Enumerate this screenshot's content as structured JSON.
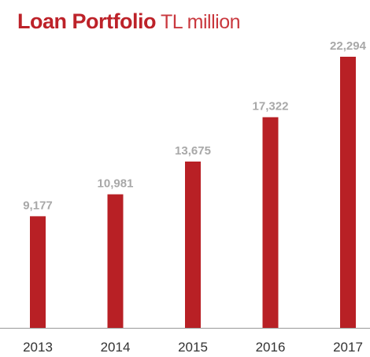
{
  "chart_data": {
    "type": "bar",
    "title": "Loan Portfolio",
    "subtitle": "TL million",
    "categories": [
      "2013",
      "2014",
      "2015",
      "2016",
      "2017"
    ],
    "values": [
      9177,
      10981,
      13675,
      17322,
      22294
    ],
    "value_labels": [
      "9,177",
      "10,981",
      "13,675",
      "17,322",
      "22,294"
    ],
    "color": "#b82025"
  }
}
